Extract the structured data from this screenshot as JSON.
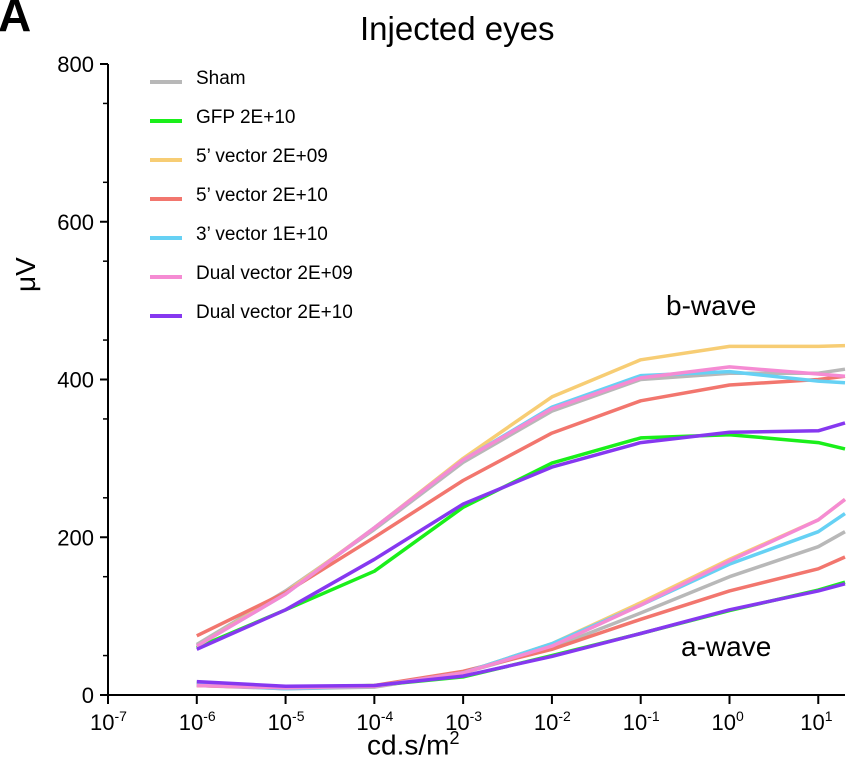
{
  "panel_label": "A",
  "chart_data": {
    "type": "line",
    "title": "Injected eyes",
    "xlabel": "cd.s/m",
    "xlabel_superscript": "2",
    "ylabel": "μV",
    "x_scale": "log",
    "xlim": [
      1e-07,
      20
    ],
    "ylim": [
      0,
      800
    ],
    "y_ticks": [
      0,
      200,
      400,
      600,
      800
    ],
    "x_ticks": [
      {
        "value": 1e-07,
        "base": "10",
        "exp": "-7"
      },
      {
        "value": 1e-06,
        "base": "10",
        "exp": "-6"
      },
      {
        "value": 1e-05,
        "base": "10",
        "exp": "-5"
      },
      {
        "value": 0.0001,
        "base": "10",
        "exp": "-4"
      },
      {
        "value": 0.001,
        "base": "10",
        "exp": "-3"
      },
      {
        "value": 0.01,
        "base": "10",
        "exp": "-2"
      },
      {
        "value": 0.1,
        "base": "10",
        "exp": "-1"
      },
      {
        "value": 1,
        "base": "10",
        "exp": "0"
      },
      {
        "value": 10,
        "base": "10",
        "exp": "1"
      }
    ],
    "x": [
      1e-06,
      1e-05,
      0.0001,
      0.001,
      0.01,
      0.1,
      1,
      10,
      20
    ],
    "grid": false,
    "legend_position": "top-left",
    "annotations": [
      {
        "text": "b-wave",
        "key": "b"
      },
      {
        "text": "a-wave",
        "key": "a"
      }
    ],
    "series": [
      {
        "name": "Sham",
        "color": "#b8b8b8",
        "b_wave": [
          64,
          132,
          210,
          295,
          360,
          400,
          408,
          408,
          413
        ],
        "a_wave": [
          12,
          8,
          10,
          28,
          60,
          104,
          150,
          188,
          207
        ]
      },
      {
        "name": "GFP 2E+10",
        "color": "#1aef1a",
        "b_wave": [
          60,
          108,
          157,
          238,
          294,
          326,
          330,
          320,
          312
        ],
        "a_wave": [
          16,
          10,
          12,
          23,
          50,
          78,
          107,
          133,
          143
        ]
      },
      {
        "name": "5’ vector 2E+09",
        "color": "#f7cd74",
        "b_wave": [
          62,
          130,
          212,
          300,
          378,
          425,
          442,
          442,
          443
        ],
        "a_wave": [
          12,
          9,
          11,
          28,
          65,
          117,
          172,
          222,
          248
        ]
      },
      {
        "name": "5’ vector 2E+10",
        "color": "#f2766e",
        "b_wave": [
          75,
          130,
          200,
          272,
          332,
          373,
          393,
          400,
          404
        ],
        "a_wave": [
          12,
          9,
          12,
          30,
          58,
          96,
          132,
          160,
          175
        ]
      },
      {
        "name": "3’ vector 1E+10",
        "color": "#66d1f4",
        "b_wave": [
          62,
          128,
          212,
          298,
          365,
          405,
          410,
          398,
          396
        ],
        "a_wave": [
          13,
          8,
          11,
          28,
          65,
          114,
          166,
          207,
          230
        ]
      },
      {
        "name": "Dual vector 2E+09",
        "color": "#f58bd3",
        "b_wave": [
          62,
          128,
          212,
          298,
          363,
          402,
          416,
          407,
          404
        ],
        "a_wave": [
          12,
          9,
          11,
          28,
          62,
          114,
          170,
          222,
          248
        ]
      },
      {
        "name": "Dual vector 2E+10",
        "color": "#8638f0",
        "b_wave": [
          58,
          108,
          172,
          242,
          289,
          320,
          333,
          335,
          345
        ],
        "a_wave": [
          17,
          11,
          12,
          24,
          49,
          78,
          108,
          132,
          141
        ]
      }
    ]
  }
}
